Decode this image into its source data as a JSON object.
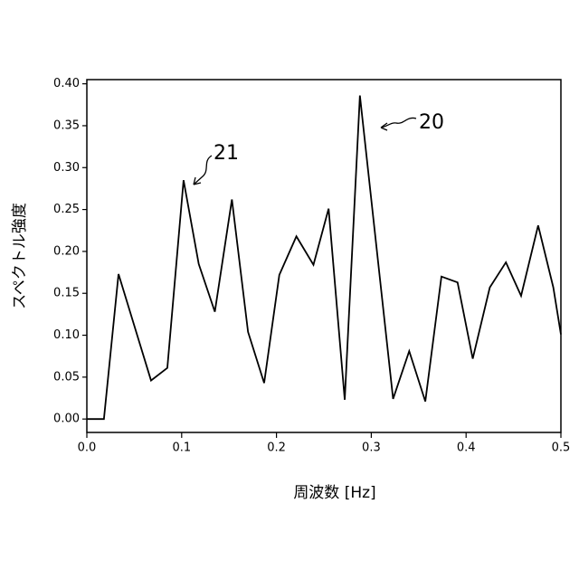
{
  "chart_data": {
    "type": "line",
    "x_label": "周波数 [Hz]",
    "y_label": "スペクトル強度",
    "x": [
      0,
      0.018,
      0.0334,
      0.0677,
      0.0849,
      0.102,
      0.118,
      0.135,
      0.153,
      0.17,
      0.187,
      0.203,
      0.221,
      0.239,
      0.255,
      0.272,
      0.288,
      0.323,
      0.34,
      0.357,
      0.374,
      0.391,
      0.407,
      0.425,
      0.442,
      0.458,
      0.476,
      0.492,
      0.5
    ],
    "series": [
      {
        "color": "#000000",
        "values": [
          0,
          0,
          0.173,
          0.046,
          0.061,
          0.285,
          0.185,
          0.128,
          0.262,
          0.104,
          0.043,
          0.172,
          0.218,
          0.184,
          0.251,
          0.023,
          0.386,
          0.024,
          0.081,
          0.021,
          0.17,
          0.163,
          0.072,
          0.157,
          0.187,
          0.147,
          0.231,
          0.157,
          0.101
        ]
      }
    ],
    "xlim": [
      0,
      0.5
    ],
    "ylim": [
      -0.016,
      0.405
    ],
    "xticks": [
      {
        "value": 0,
        "label": "0.0"
      },
      0.1,
      0.2,
      0.3,
      0.4,
      0.5
    ],
    "yticks": [
      {
        "value": 0,
        "label": "0.00"
      },
      0.05,
      {
        "value": 0.1,
        "label": "0.10"
      },
      0.15,
      {
        "value": 0.2,
        "label": "0.20"
      },
      0.25,
      {
        "value": 0.3,
        "label": "0.30"
      },
      0.35,
      {
        "value": 0.4,
        "label": "0.40"
      }
    ],
    "annotations": [
      {
        "text": "21"
      },
      {
        "text": "20"
      }
    ]
  }
}
